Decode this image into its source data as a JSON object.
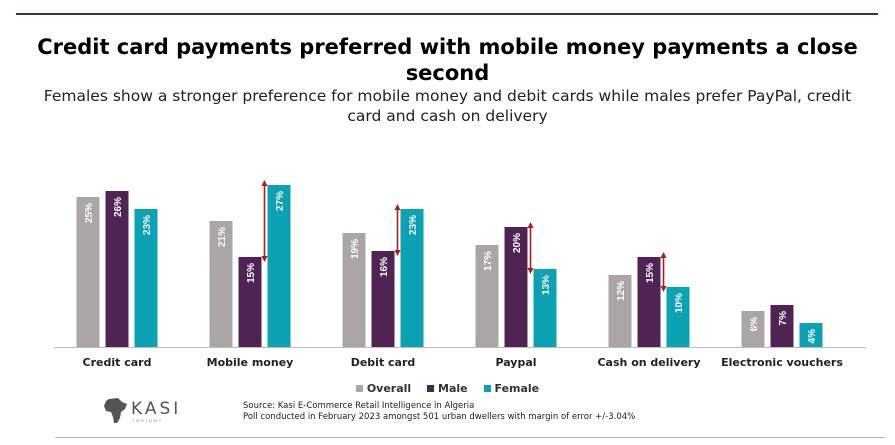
{
  "header": {
    "title": "Credit card payments preferred with mobile money payments a close second",
    "subtitle": "Females show a stronger preference for mobile money and debit cards while males prefer PayPal, credit card and cash on delivery"
  },
  "chart_data": {
    "type": "bar",
    "categories": [
      "Credit card",
      "Mobile money",
      "Debit card",
      "Paypal",
      "Cash on delivery",
      "Electronic vouchers"
    ],
    "series": [
      {
        "name": "Overall",
        "color": "#aba5a6",
        "values": [
          25,
          21,
          19,
          17,
          12,
          6
        ],
        "labels": [
          "25%",
          "21%",
          "19%",
          "17%",
          "12%",
          "6%"
        ]
      },
      {
        "name": "Male",
        "color": "#4f2453",
        "values": [
          26,
          15,
          16,
          20,
          15,
          7
        ],
        "labels": [
          "26%",
          "15%",
          "16%",
          "20%",
          "15%",
          "7%"
        ]
      },
      {
        "name": "Female",
        "color": "#0ba3b4",
        "values": [
          23,
          27,
          23,
          13,
          10,
          4
        ],
        "labels": [
          "23%",
          "27%",
          "23%",
          "13%",
          "10%",
          "4%"
        ]
      }
    ],
    "gender_gap_arrows": [
      {
        "category": "Mobile money",
        "from": 15,
        "to": 27
      },
      {
        "category": "Debit card",
        "from": 16,
        "to": 23
      },
      {
        "category": "Paypal",
        "from": 13,
        "to": 20
      },
      {
        "category": "Cash on delivery",
        "from": 10,
        "to": 15
      }
    ],
    "ylim": [
      0,
      28
    ],
    "legend_position": "bottom",
    "arrow_color": "#b01c1c"
  },
  "legend": {
    "items": [
      "Overall",
      "Male",
      "Female"
    ]
  },
  "footer": {
    "logo_text": "KASI",
    "logo_tagline": "INSIGHT",
    "source_line1": "Source: Kasi E-Commerce Retail Intelligence in Algeria",
    "source_line2": "Poll conducted in February 2023 amongst 501 urban dwellers with margin of error +/-3.04%"
  }
}
